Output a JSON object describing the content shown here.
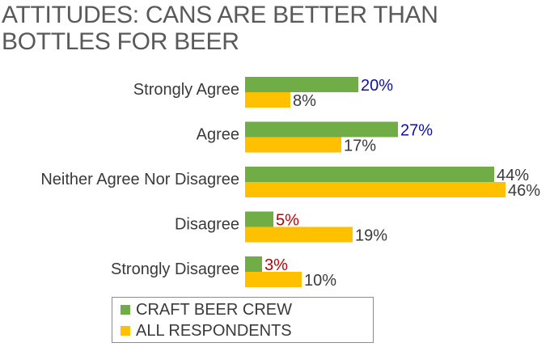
{
  "chart_data": {
    "type": "bar",
    "orientation": "horizontal",
    "title": "ATTITUDES: CANS ARE BETTER THAN BOTTLES FOR BEER",
    "categories": [
      "Strongly Agree",
      "Agree",
      "Neither Agree Nor Disagree",
      "Disagree",
      "Strongly Disagree"
    ],
    "series": [
      {
        "name": "CRAFT BEER CREW",
        "color": "#70ad47",
        "values": [
          20,
          27,
          44,
          5,
          3
        ],
        "labels": [
          "20%",
          "27%",
          "44%",
          "5%",
          "3%"
        ],
        "label_colors": [
          "#0f0fa6",
          "#0f0fa6",
          "#3a3a3a",
          "#c00000",
          "#c00000"
        ]
      },
      {
        "name": "ALL RESPONDENTS",
        "color": "#ffc000",
        "values": [
          8,
          17,
          46,
          19,
          10
        ],
        "labels": [
          "8%",
          "17%",
          "46%",
          "19%",
          "10%"
        ],
        "label_colors": [
          "#3a3a3a",
          "#3a3a3a",
          "#3a3a3a",
          "#3a3a3a",
          "#3a3a3a"
        ]
      }
    ],
    "value_unit": "%",
    "grid": false,
    "legend_position": "bottom"
  }
}
